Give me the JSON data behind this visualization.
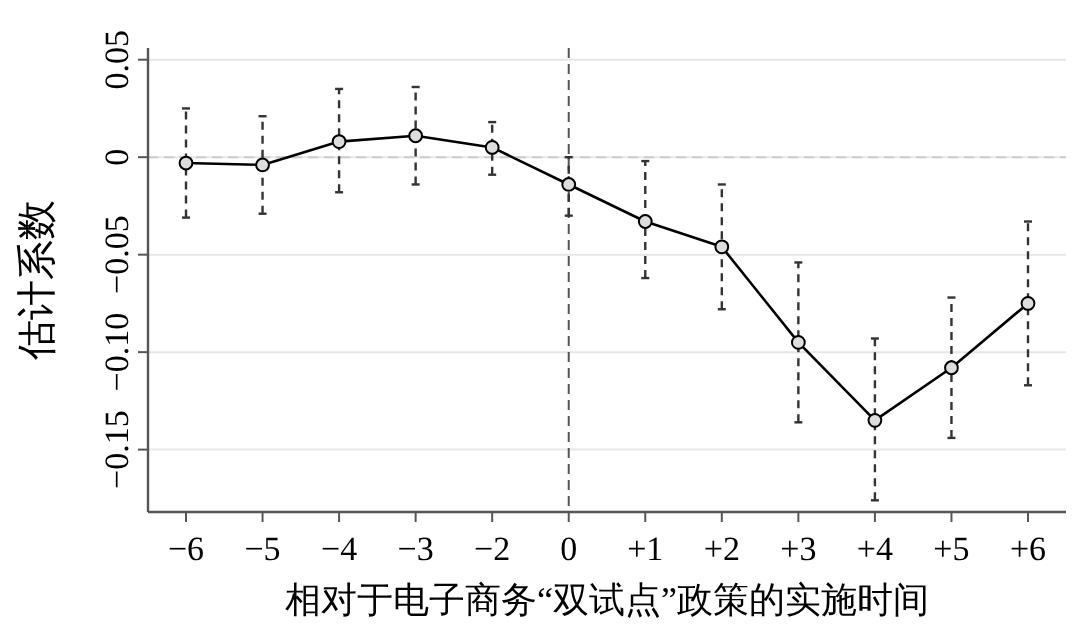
{
  "chart_data": {
    "type": "line",
    "xlabel": "相对于电子商务“双试点”政策的实施时间",
    "ylabel": "估计系数",
    "categories": [
      "−6",
      "−5",
      "−4",
      "−3",
      "−2",
      "0",
      "+1",
      "+2",
      "+3",
      "+4",
      "+5",
      "+6"
    ],
    "series": [
      {
        "color": "#000000",
        "values": [
          -0.003,
          -0.004,
          0.008,
          0.011,
          0.005,
          -0.014,
          -0.033,
          -0.046,
          -0.095,
          -0.135,
          -0.108,
          -0.075
        ],
        "errors": [
          [
            -0.031,
            0.025
          ],
          [
            -0.029,
            0.021
          ],
          [
            -0.018,
            0.035
          ],
          [
            -0.014,
            0.036
          ],
          [
            -0.009,
            0.018
          ],
          [
            -0.03,
            0.0
          ],
          [
            -0.062,
            -0.002
          ],
          [
            -0.078,
            -0.014
          ],
          [
            -0.136,
            -0.054
          ],
          [
            -0.176,
            -0.093
          ],
          [
            -0.144,
            -0.072
          ],
          [
            -0.117,
            -0.033
          ]
        ]
      }
    ],
    "ylim": [
      -0.182,
      0.056
    ],
    "yticks": [
      {
        "value": 0.05,
        "label": "0.05"
      },
      0,
      {
        "value": -0.05,
        "label": "−0.05"
      },
      {
        "value": -0.1,
        "label": "−0.10"
      },
      {
        "value": -0.15,
        "label": "−0.15"
      }
    ],
    "grid": "y",
    "marker": "circle",
    "line_style": "solid",
    "ref_lines": [
      {
        "axis": "x",
        "value": "0",
        "color": "#555555",
        "line_style": "dashed"
      },
      {
        "axis": "y",
        "value": 0,
        "color": "#cccccc",
        "line_style": "dashed"
      }
    ]
  }
}
